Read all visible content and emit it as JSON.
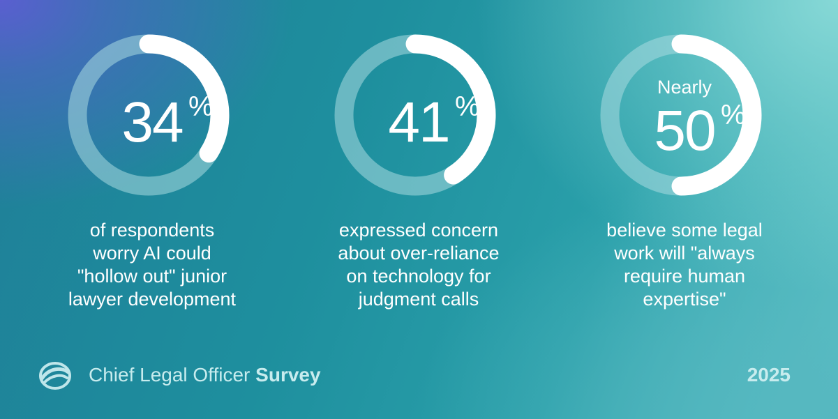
{
  "chart_data": {
    "type": "donut",
    "items": [
      {
        "qualifier": "",
        "value": 34,
        "display": "34",
        "unit": "%",
        "caption": [
          "of respondents",
          "worry AI could",
          "\"hollow out\" junior",
          "lawyer development"
        ]
      },
      {
        "qualifier": "",
        "value": 41,
        "display": "41",
        "unit": "%",
        "caption": [
          "expressed concern",
          "about over-reliance",
          "on technology for",
          "judgment calls"
        ]
      },
      {
        "qualifier": "Nearly",
        "value": 50,
        "display": "50",
        "unit": "%",
        "caption": [
          "believe some legal",
          "work will \"always",
          "require human",
          "expertise\""
        ]
      }
    ]
  },
  "footer": {
    "logo_icon": "survey-logo-icon",
    "title_light": "Chief Legal Officer",
    "title_bold": "Survey",
    "year": "2025"
  },
  "colors": {
    "ring_track": "#a9dbe0",
    "ring_fill": "#ffffff",
    "text": "#ffffff"
  }
}
